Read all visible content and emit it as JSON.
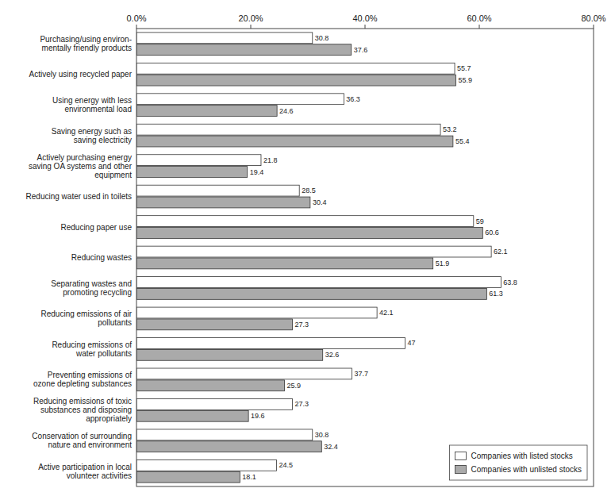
{
  "chart_data": {
    "type": "bar",
    "orientation": "horizontal",
    "categories": [
      "Active participation in local\nvolunteer activities",
      "Conservation of surrounding\nnature and environment",
      "Reducing emissions of toxic\nsubstances and disposing\nappropriately",
      "Preventing emissions of\nozone depleting substances",
      "Reducing emissions of\nwater pollutants",
      "Reducing emissions of air\npollutants",
      "Separating wastes and\npromoting recycling",
      "Reducing wastes",
      "Reducing paper use",
      "Reducing water used in toilets",
      "Actively purchasing energy\nsaving OA systems and other\nequipment",
      "Saving energy such as\nsaving electricity",
      "Using energy with less\nenvironmental load",
      "Actively using recycled paper",
      "Purchasing/using environ-\nmentally friendly products"
    ],
    "series": [
      {
        "name": "Companies with listed stocks",
        "color": "#ffffff",
        "values": [
          24.5,
          30.8,
          27.3,
          37.7,
          47.0,
          42.1,
          63.8,
          62.1,
          59.0,
          28.5,
          21.8,
          53.2,
          36.3,
          55.7,
          30.8
        ]
      },
      {
        "name": "Companies with unlisted stocks",
        "color": "#aaaaaa",
        "values": [
          18.1,
          32.4,
          19.6,
          25.9,
          32.6,
          27.3,
          61.3,
          51.9,
          60.6,
          30.4,
          19.4,
          55.4,
          24.6,
          55.9,
          37.6
        ]
      }
    ],
    "xlim": [
      0,
      80
    ],
    "xticks": [
      {
        "value": 0,
        "label": "0.0%"
      },
      {
        "value": 20,
        "label": "20.0%"
      },
      {
        "value": 40,
        "label": "40.0%"
      },
      {
        "value": 60,
        "label": "60.0%"
      },
      {
        "value": 80,
        "label": "80.0%"
      }
    ],
    "grid": false,
    "data_labels": true,
    "legend": "lower right"
  }
}
